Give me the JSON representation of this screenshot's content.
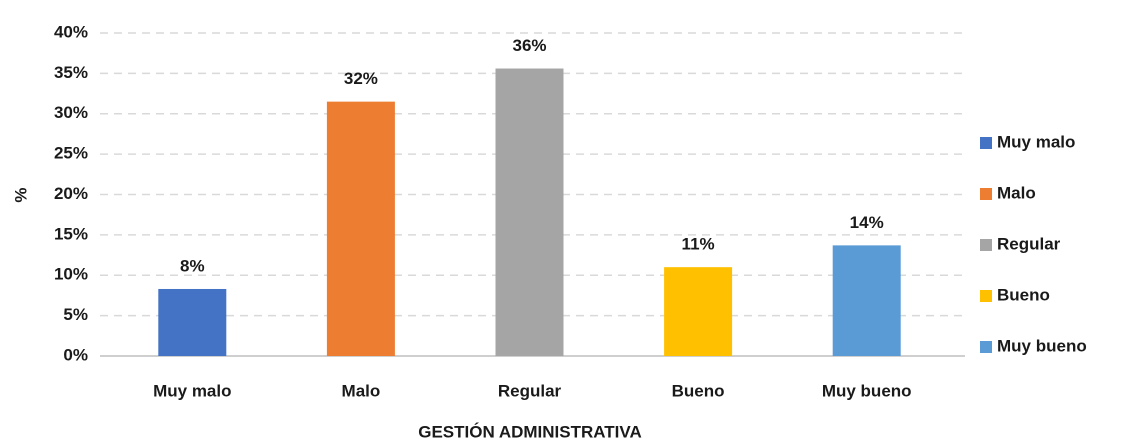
{
  "chart_data": {
    "type": "bar",
    "x_label": "GESTIÓN ADMINISTRATIVA",
    "y_label": "%",
    "categories": [
      "Muy malo",
      "Malo",
      "Regular",
      "Bueno",
      "Muy bueno"
    ],
    "values": [
      8.3,
      31.5,
      35.6,
      11,
      13.7
    ],
    "value_labels": [
      "8%",
      "32%",
      "36%",
      "11%",
      "14%"
    ],
    "colors": [
      "#4472c4",
      "#ed7d31",
      "#a5a5a5",
      "#ffc000",
      "#5b9bd5"
    ],
    "ylim": [
      0,
      40
    ],
    "yticks": [
      {
        "value": 0,
        "label": "0%"
      },
      {
        "value": 5,
        "label": "5%"
      },
      {
        "value": 10,
        "label": "10%"
      },
      {
        "value": 15,
        "label": "15%"
      },
      {
        "value": 20,
        "label": "20%"
      },
      {
        "value": 25,
        "label": "25%"
      },
      {
        "value": 30,
        "label": "30%"
      },
      {
        "value": 35,
        "label": "35%"
      },
      {
        "value": 40,
        "label": "40%"
      }
    ],
    "grid": true,
    "legend": "right"
  }
}
